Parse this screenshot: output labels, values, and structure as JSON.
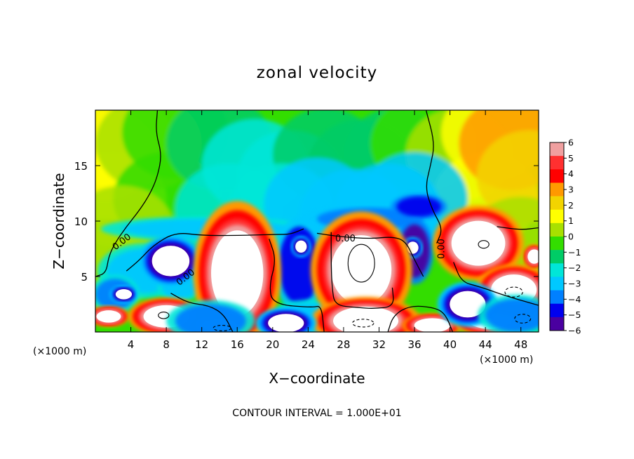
{
  "chart_data": {
    "type": "heatmap",
    "title": "zonal velocity",
    "xlabel": "X−coordinate",
    "ylabel": "Z−coordinate",
    "x_unit_left": "(×1000 m)",
    "x_unit_right": "(×1000 m)",
    "xlim": [
      0,
      50
    ],
    "ylim": [
      0,
      20
    ],
    "x_ticks": [
      4,
      8,
      12,
      16,
      20,
      24,
      28,
      32,
      36,
      40,
      44,
      48
    ],
    "x_tick_labels": [
      "4",
      "8",
      "12",
      "16",
      "20",
      "24",
      "28",
      "32",
      "36",
      "40",
      "44",
      "48"
    ],
    "y_ticks": [
      5,
      10,
      15
    ],
    "y_tick_labels": [
      "5",
      "10",
      "15"
    ],
    "colorbar": {
      "range": [
        -6,
        6
      ],
      "tick_values": [
        6,
        5,
        4,
        3,
        2,
        1,
        0,
        -1,
        -2,
        -3,
        -4,
        -5,
        -6
      ],
      "tick_labels": [
        "6",
        "5",
        "4",
        "3",
        "2",
        "1",
        "0",
        "−1",
        "−2",
        "−3",
        "−4",
        "−5",
        "−6"
      ],
      "colors": [
        "#f0a0a0",
        "#ff3030",
        "#ff0000",
        "#ff9900",
        "#f2d400",
        "#ffff00",
        "#a8e000",
        "#33dd00",
        "#00cc66",
        "#00e6d8",
        "#00c8ff",
        "#0080ff",
        "#0000ee",
        "#4a00a0"
      ]
    },
    "contour_labels": [
      {
        "x": 3.0,
        "y": 8.1,
        "text": "0.00",
        "angle": -38
      },
      {
        "x": 10.2,
        "y": 4.9,
        "text": "0.00",
        "angle": -38
      },
      {
        "x": 28.2,
        "y": 8.4,
        "text": "0.00",
        "angle": 0
      },
      {
        "x": 39.1,
        "y": 7.5,
        "text": "0.00",
        "angle": -90
      }
    ],
    "background_field": [
      {
        "x": 1,
        "y": 16,
        "v": 2.3
      },
      {
        "x": 2,
        "y": 12,
        "v": 1.6
      },
      {
        "x": 3,
        "y": 17,
        "v": 1.2
      },
      {
        "x": 6,
        "y": 17,
        "v": 0.3
      },
      {
        "x": 9,
        "y": 18,
        "v": -0.6
      },
      {
        "x": 8,
        "y": 12,
        "v": -0.4
      },
      {
        "x": 14,
        "y": 17,
        "v": -1.3
      },
      {
        "x": 18,
        "y": 15,
        "v": -1.8
      },
      {
        "x": 22,
        "y": 14,
        "v": -1.8
      },
      {
        "x": 26,
        "y": 16,
        "v": -1.6
      },
      {
        "x": 30,
        "y": 15,
        "v": -1.7
      },
      {
        "x": 34,
        "y": 16,
        "v": -1.3
      },
      {
        "x": 37,
        "y": 17,
        "v": -0.8
      },
      {
        "x": 41,
        "y": 16,
        "v": 0.6
      },
      {
        "x": 44,
        "y": 12,
        "v": 1.0
      },
      {
        "x": 45,
        "y": 18,
        "v": 1.6
      },
      {
        "x": 47,
        "y": 17,
        "v": 2.6
      },
      {
        "x": 49,
        "y": 14,
        "v": 2.0
      },
      {
        "x": 15,
        "y": 11,
        "v": -2.2
      },
      {
        "x": 21,
        "y": 11,
        "v": -2.4
      },
      {
        "x": 25,
        "y": 11.5,
        "v": -2.6
      },
      {
        "x": 29,
        "y": 10.5,
        "v": -2.7
      },
      {
        "x": 33,
        "y": 11,
        "v": -3.0
      },
      {
        "x": 36,
        "y": 12,
        "v": -3.4
      },
      {
        "x": 3,
        "y": 9,
        "v": 0.8
      },
      {
        "x": 1,
        "y": 6,
        "v": 0.5
      },
      {
        "x": 48,
        "y": 8,
        "v": 0.8
      }
    ],
    "features": [
      {
        "kind": "band",
        "x": 12.5,
        "y": 9.3,
        "rx": 9.5,
        "ry": 0.9,
        "v": -3.3
      },
      {
        "kind": "band",
        "x": 31,
        "y": 10.2,
        "rx": 6,
        "ry": 1.0,
        "v": -4.0
      },
      {
        "kind": "band",
        "x": 36.5,
        "y": 11.3,
        "rx": 2.5,
        "ry": 0.9,
        "v": -5.0
      },
      {
        "kind": "band",
        "x": 5.5,
        "y": 5.5,
        "rx": 4.2,
        "ry": 2.0,
        "v": -3.4
      },
      {
        "kind": "band",
        "x": 2.2,
        "y": 3.4,
        "rx": 2.2,
        "ry": 1.4,
        "v": -3.6
      },
      {
        "kind": "band",
        "x": 23,
        "y": 6.0,
        "rx": 2.3,
        "ry": 3.5,
        "v": -4.3
      },
      {
        "kind": "band",
        "x": 36,
        "y": 7.3,
        "rx": 1.7,
        "ry": 2.4,
        "v": -5.4
      },
      {
        "kind": "band",
        "x": 24.5,
        "y": 1.3,
        "rx": 4,
        "ry": 1.3,
        "v": -3.0
      },
      {
        "kind": "band",
        "x": 9.5,
        "y": 4.0,
        "rx": 2,
        "ry": 1,
        "v": -3.0
      },
      {
        "kind": "vortex",
        "x": 8.5,
        "y": 6.4,
        "rx": 2.3,
        "ry": 1.5,
        "v": -6
      },
      {
        "kind": "vortex",
        "x": 23.2,
        "y": 7.7,
        "rx": 0.7,
        "ry": 0.6,
        "v": -6
      },
      {
        "kind": "vortex",
        "x": 35.8,
        "y": 7.6,
        "rx": 0.7,
        "ry": 0.6,
        "v": -6
      },
      {
        "kind": "vortex",
        "x": 3.2,
        "y": 3.4,
        "rx": 1.0,
        "ry": 0.5,
        "v": -6
      },
      {
        "kind": "vortex",
        "x": 16,
        "y": 5.3,
        "rx": 3.2,
        "ry": 4.2,
        "v": 6
      },
      {
        "kind": "vortex",
        "x": 30.0,
        "y": 5.6,
        "rx": 3.7,
        "ry": 3.4,
        "v": 6
      },
      {
        "kind": "vortex",
        "x": 43.2,
        "y": 8.0,
        "rx": 3.3,
        "ry": 2.2,
        "v": 6
      },
      {
        "kind": "vortex",
        "x": 8.0,
        "y": 1.4,
        "rx": 2.8,
        "ry": 1.1,
        "v": 6
      },
      {
        "kind": "vortex",
        "x": 1.5,
        "y": 1.4,
        "rx": 1.5,
        "ry": 0.6,
        "v": 6
      },
      {
        "kind": "vortex",
        "x": 30.5,
        "y": 1.0,
        "rx": 4.0,
        "ry": 1.4,
        "v": 6
      },
      {
        "kind": "vortex",
        "x": 14,
        "y": 0.6,
        "rx": 2.2,
        "ry": 0.6,
        "v": 6
      },
      {
        "kind": "vortex",
        "x": 38,
        "y": 0.6,
        "rx": 2.2,
        "ry": 0.7,
        "v": 6
      },
      {
        "kind": "vortex",
        "x": 44.5,
        "y": 1.2,
        "rx": 2.8,
        "ry": 1.0,
        "v": 6
      },
      {
        "kind": "vortex",
        "x": 47.2,
        "y": 3.8,
        "rx": 2.8,
        "ry": 1.5,
        "v": 6
      },
      {
        "kind": "vortex",
        "x": 49.5,
        "y": 6.8,
        "rx": 0.8,
        "ry": 0.7,
        "v": 6
      },
      {
        "kind": "vortex",
        "x": 21.5,
        "y": 0.8,
        "rx": 2.2,
        "ry": 0.9,
        "v": -6
      },
      {
        "kind": "vortex",
        "x": 42.0,
        "y": 2.5,
        "rx": 2.2,
        "ry": 1.3,
        "v": -6
      },
      {
        "kind": "band",
        "x": 13.0,
        "y": 1.0,
        "rx": 4.0,
        "ry": 1.5,
        "v": -3.5
      },
      {
        "kind": "band",
        "x": 47.5,
        "y": 1.5,
        "rx": 3.5,
        "ry": 1.5,
        "v": -3.5
      }
    ],
    "contours": [
      {
        "style": "solid",
        "points": [
          [
            7,
            20
          ],
          [
            6.8,
            18
          ],
          [
            7.5,
            16
          ],
          [
            7,
            14
          ],
          [
            6.2,
            12.5
          ],
          [
            5,
            11
          ],
          [
            3.5,
            9.5
          ],
          [
            2.2,
            8
          ],
          [
            1.5,
            6.8
          ],
          [
            1.2,
            5.3
          ],
          [
            0,
            5.0
          ]
        ]
      },
      {
        "style": "solid",
        "points": [
          [
            3.5,
            5.5
          ],
          [
            5,
            6.5
          ],
          [
            6.5,
            7.8
          ],
          [
            9,
            9
          ],
          [
            12,
            8.7
          ],
          [
            16,
            8.7
          ],
          [
            20.5,
            8.8
          ],
          [
            22,
            8.8
          ],
          [
            23.5,
            9.3
          ]
        ]
      },
      {
        "style": "solid",
        "points": [
          [
            25,
            8.9
          ],
          [
            27.5,
            8.6
          ],
          [
            31,
            8.4
          ],
          [
            33.5,
            8.6
          ],
          [
            35,
            8.2
          ],
          [
            36,
            6.5
          ],
          [
            37,
            5.0
          ]
        ]
      },
      {
        "style": "solid",
        "points": [
          [
            38.5,
            8.0
          ],
          [
            39.2,
            9.3
          ],
          [
            38,
            11
          ],
          [
            37.2,
            13
          ],
          [
            37.8,
            15
          ],
          [
            38.3,
            17
          ],
          [
            37.3,
            20
          ]
        ]
      },
      {
        "style": "solid",
        "points": [
          [
            26.6,
            9.0
          ],
          [
            26.6,
            6.0
          ],
          [
            26.7,
            4.0
          ],
          [
            27,
            2.4
          ],
          [
            29.5,
            2.2
          ],
          [
            31.5,
            2.1
          ],
          [
            33.7,
            2.3
          ],
          [
            33.5,
            4
          ]
        ]
      },
      {
        "style": "solid",
        "points": [
          [
            19.6,
            8.4
          ],
          [
            20.4,
            6.5
          ],
          [
            19.6,
            4.2
          ],
          [
            20,
            2.5
          ],
          [
            24.5,
            2.2
          ],
          [
            25.5,
            2.4
          ],
          [
            25.8,
            0
          ]
        ]
      },
      {
        "style": "solid",
        "points": [
          [
            8.5,
            3.5
          ],
          [
            10.5,
            2.6
          ],
          [
            12.8,
            2.4
          ],
          [
            14.5,
            1.6
          ],
          [
            15.5,
            0
          ]
        ]
      },
      {
        "style": "solid",
        "points": [
          [
            33,
            0
          ],
          [
            33.6,
            1.5
          ],
          [
            35.5,
            2.4
          ],
          [
            38.3,
            2.2
          ],
          [
            39.5,
            1.6
          ],
          [
            40.3,
            0
          ]
        ]
      },
      {
        "style": "solid",
        "points": [
          [
            40.4,
            6.3
          ],
          [
            41.3,
            4.5
          ],
          [
            43.3,
            4.1
          ],
          [
            46.5,
            3.2
          ],
          [
            50,
            2.4
          ]
        ]
      },
      {
        "style": "solid",
        "points": [
          [
            45.3,
            9.5
          ],
          [
            48,
            9.2
          ],
          [
            50,
            9.4
          ]
        ]
      },
      {
        "style": "closed",
        "cx": 30.0,
        "cy": 6.2,
        "rx": 1.5,
        "ry": 1.7
      },
      {
        "style": "closed",
        "cx": 43.8,
        "cy": 7.9,
        "rx": 0.6,
        "ry": 0.35
      },
      {
        "style": "closed",
        "cx": 7.7,
        "cy": 1.5,
        "rx": 0.6,
        "ry": 0.3
      },
      {
        "style": "dashed",
        "cx": 30.2,
        "cy": 0.8,
        "rx": 1.2,
        "ry": 0.35
      },
      {
        "style": "dashed",
        "cx": 14.3,
        "cy": 0.35,
        "rx": 1.0,
        "ry": 0.25
      },
      {
        "style": "dashed",
        "cx": 47.2,
        "cy": 3.6,
        "rx": 1.0,
        "ry": 0.45
      },
      {
        "style": "dashed",
        "cx": 48.2,
        "cy": 1.2,
        "rx": 0.9,
        "ry": 0.4
      }
    ]
  },
  "footer_text": "CONTOUR INTERVAL = 1.000E+01"
}
